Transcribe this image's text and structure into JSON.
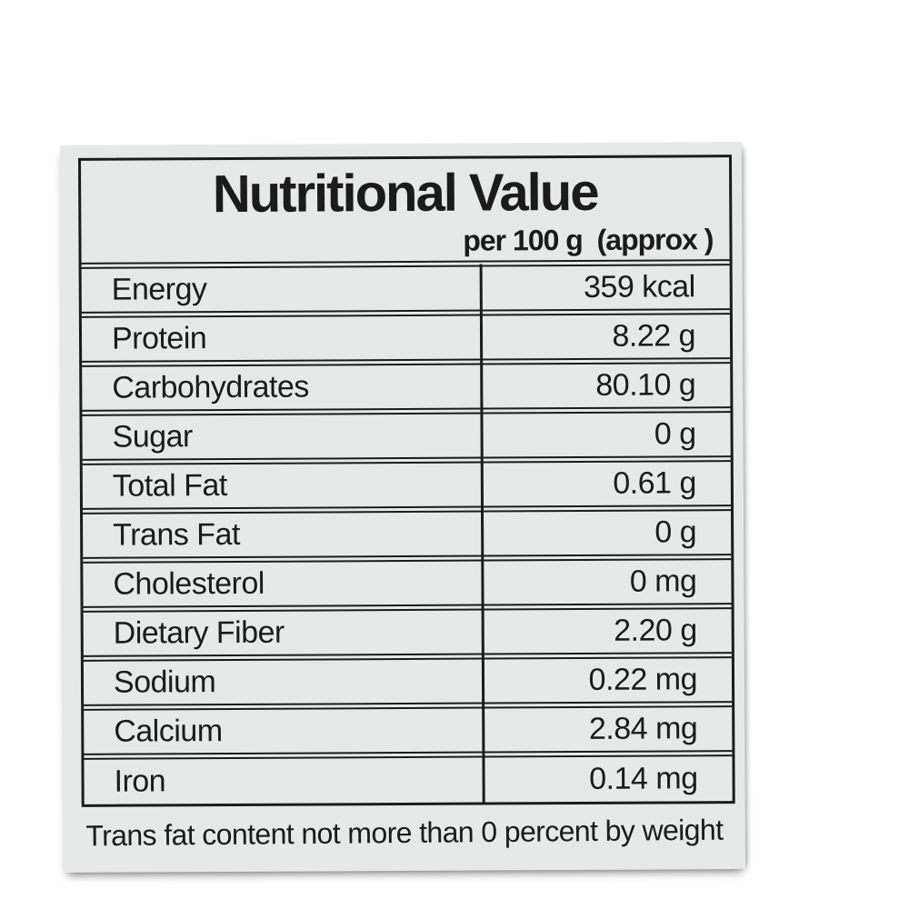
{
  "label": {
    "colors": {
      "background": "#e7e9e8",
      "ink": "#1b1b1b",
      "page_background": "#ffffff"
    },
    "header": {
      "title": "Nutritional Value",
      "subtitle": "per 100 g  (approx )"
    },
    "table": {
      "rows": [
        {
          "name": "Energy",
          "value": "359 kcal"
        },
        {
          "name": "Protein",
          "value": "8.22 g"
        },
        {
          "name": "Carbohydrates",
          "value": "80.10 g"
        },
        {
          "name": "Sugar",
          "value": "0 g"
        },
        {
          "name": "Total Fat",
          "value": "0.61 g"
        },
        {
          "name": "Trans Fat",
          "value": "0 g"
        },
        {
          "name": "Cholesterol",
          "value": "0 mg"
        },
        {
          "name": "Dietary Fiber",
          "value": "2.20 g"
        },
        {
          "name": "Sodium",
          "value": "0.22 mg"
        },
        {
          "name": "Calcium",
          "value": "2.84 mg"
        },
        {
          "name": "Iron",
          "value": "0.14 mg"
        }
      ]
    },
    "footnote": "Trans fat content not more than 0 percent by weight"
  }
}
